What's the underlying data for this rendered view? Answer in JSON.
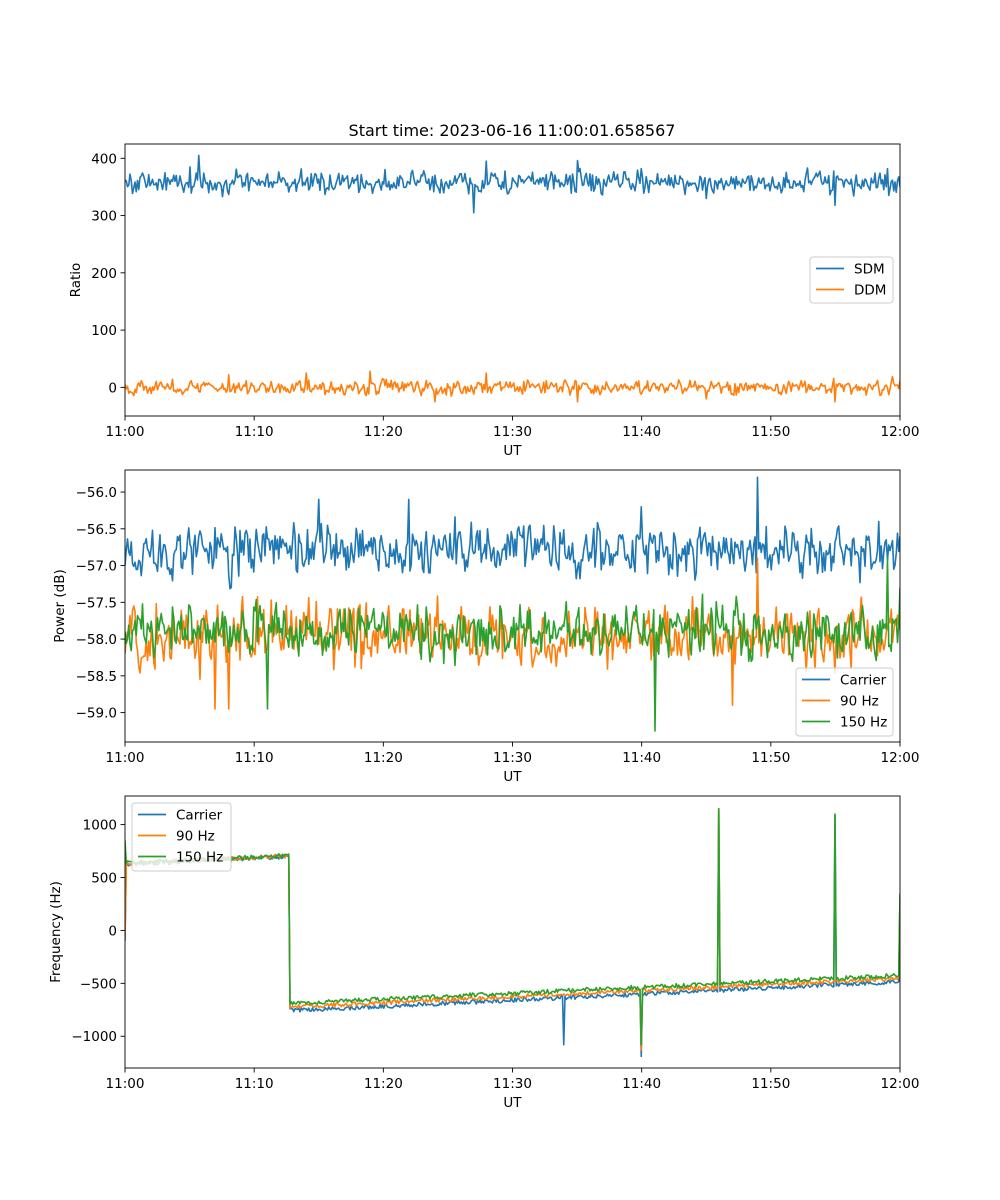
{
  "figure": {
    "title": "Start time: 2023-06-16 11:00:01.658567"
  },
  "colors": {
    "blue": "#1f77b4",
    "orange": "#ff7f0e",
    "green": "#2ca02c"
  },
  "chart_data": [
    {
      "type": "line",
      "title": "Start time: 2023-06-16 11:00:01.658567",
      "xlabel": "UT",
      "ylabel": "Ratio",
      "xlim": [
        "11:00",
        "12:00"
      ],
      "xticks": [
        "11:00",
        "11:10",
        "11:20",
        "11:30",
        "11:40",
        "11:50",
        "12:00"
      ],
      "ylim": [
        -50,
        425
      ],
      "yticks": [
        0,
        100,
        200,
        300,
        400
      ],
      "legend": "center-right",
      "grid": false,
      "series": [
        {
          "name": "SDM",
          "color": "#1f77b4",
          "mean": 358,
          "spread": 14,
          "points": [
            [
              "11:00",
              362
            ],
            [
              "11:05",
              385
            ],
            [
              "11:05:40",
              405
            ],
            [
              "11:10",
              360
            ],
            [
              "11:20",
              355
            ],
            [
              "11:27",
              305
            ],
            [
              "11:28",
              395
            ],
            [
              "11:35",
              396
            ],
            [
              "11:45",
              330
            ],
            [
              "11:55",
              318
            ],
            [
              "11:59",
              382
            ],
            [
              "12:00",
              350
            ]
          ]
        },
        {
          "name": "DDM",
          "color": "#ff7f0e",
          "mean": 0,
          "spread": 9,
          "points": [
            [
              "11:00",
              5
            ],
            [
              "11:08",
              22
            ],
            [
              "11:14",
              25
            ],
            [
              "11:19",
              28
            ],
            [
              "11:24",
              -25
            ],
            [
              "11:28",
              25
            ],
            [
              "11:35",
              -25
            ],
            [
              "11:45",
              -20
            ],
            [
              "11:55",
              -25
            ],
            [
              "12:00",
              12
            ]
          ]
        }
      ]
    },
    {
      "type": "line",
      "xlabel": "UT",
      "ylabel": "Power (dB)",
      "xlim": [
        "11:00",
        "12:00"
      ],
      "xticks": [
        "11:00",
        "11:10",
        "11:20",
        "11:30",
        "11:40",
        "11:50",
        "12:00"
      ],
      "ylim": [
        -59.4,
        -55.7
      ],
      "yticks": [
        -59.0,
        -58.5,
        -58.0,
        -57.5,
        -57.0,
        -56.5,
        -56.0
      ],
      "legend": "lower-right",
      "grid": false,
      "series": [
        {
          "name": "Carrier",
          "color": "#1f77b4",
          "mean": -56.8,
          "spread": 0.25,
          "points": [
            [
              "11:00",
              -57.0
            ],
            [
              "11:15",
              -56.1
            ],
            [
              "11:22",
              -56.1
            ],
            [
              "11:40",
              -56.2
            ],
            [
              "11:49",
              -55.8
            ],
            [
              "12:00",
              -56.6
            ]
          ]
        },
        {
          "name": "90 Hz",
          "color": "#ff7f0e",
          "mean": -57.95,
          "spread": 0.3,
          "points": [
            [
              "11:00",
              -58.2
            ],
            [
              "11:07",
              -58.95
            ],
            [
              "11:08",
              -58.95
            ],
            [
              "11:30",
              -57.9
            ],
            [
              "11:47",
              -58.9
            ],
            [
              "11:49",
              -56.9
            ],
            [
              "12:00",
              -57.8
            ]
          ]
        },
        {
          "name": "150 Hz",
          "color": "#2ca02c",
          "mean": -57.9,
          "spread": 0.25,
          "points": [
            [
              "11:00",
              -57.9
            ],
            [
              "11:11",
              -58.95
            ],
            [
              "11:41",
              -59.25
            ],
            [
              "11:59",
              -56.9
            ],
            [
              "12:00",
              -57.3
            ]
          ]
        }
      ]
    },
    {
      "type": "line",
      "xlabel": "UT",
      "ylabel": "Frequency (Hz)",
      "xlim": [
        "11:00",
        "12:00"
      ],
      "xticks": [
        "11:00",
        "11:10",
        "11:20",
        "11:30",
        "11:40",
        "11:50",
        "12:00"
      ],
      "ylim": [
        -1300,
        1270
      ],
      "yticks": [
        -1000,
        -500,
        0,
        500,
        1000
      ],
      "legend": "upper-left",
      "grid": false,
      "series": [
        {
          "name": "Carrier",
          "color": "#1f77b4",
          "mean": -30,
          "spread": 480,
          "points": [
            [
              "11:00",
              -100
            ],
            [
              "11:34",
              -1080
            ],
            [
              "11:40",
              -1190
            ],
            [
              "11:46",
              1140
            ],
            [
              "11:55",
              1090
            ],
            [
              "12:00",
              300
            ]
          ]
        },
        {
          "name": "90 Hz",
          "color": "#ff7f0e",
          "mean": -10,
          "spread": 470,
          "points": [
            [
              "11:00",
              -80
            ],
            [
              "11:40",
              -1130
            ],
            [
              "11:46",
              1150
            ],
            [
              "12:00",
              320
            ]
          ]
        },
        {
          "name": "150 Hz",
          "color": "#2ca02c",
          "mean": 10,
          "spread": 460,
          "points": [
            [
              "11:00",
              850
            ],
            [
              "11:40",
              -1080
            ],
            [
              "11:46",
              1150
            ],
            [
              "11:55",
              1100
            ],
            [
              "12:00",
              350
            ]
          ]
        }
      ]
    }
  ]
}
